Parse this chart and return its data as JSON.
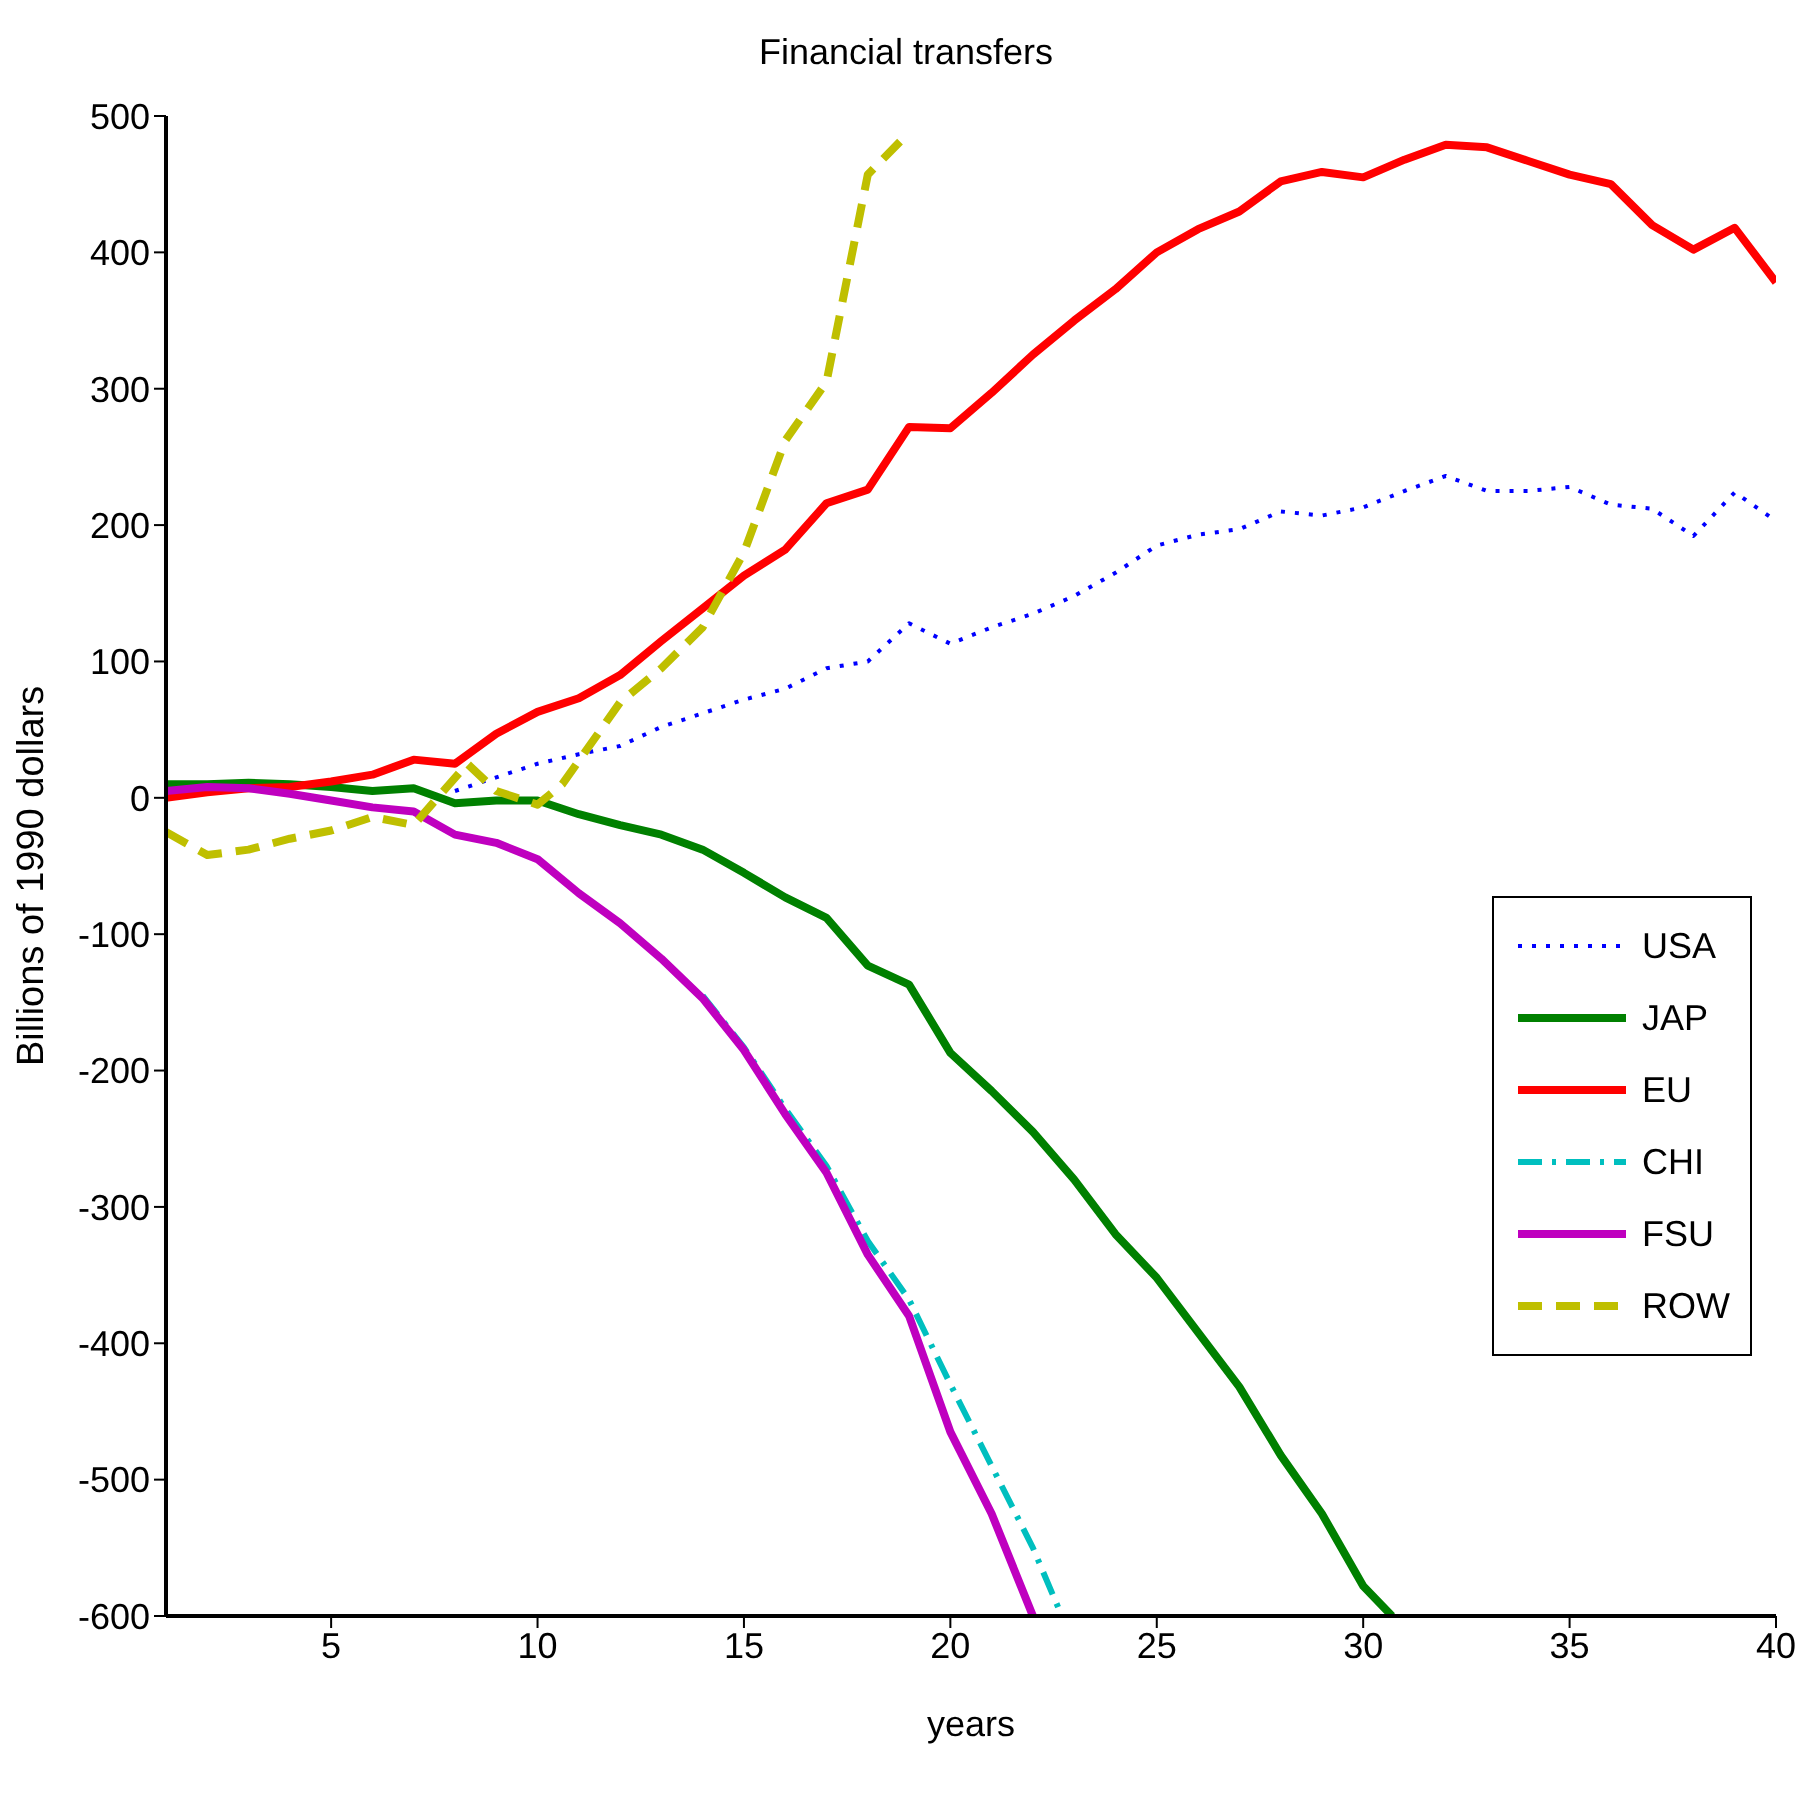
{
  "chart_data": {
    "type": "line",
    "title": "Financial transfers",
    "xlabel": "years",
    "ylabel": "Billions of 1990 dollars",
    "xlim": [
      1,
      40
    ],
    "xticks": [
      5,
      10,
      15,
      20,
      25,
      30,
      35,
      40
    ],
    "ylim": [
      -600,
      500
    ],
    "yticks": [
      -600,
      -500,
      -400,
      -300,
      -200,
      -100,
      0,
      100,
      200,
      300,
      400,
      500
    ],
    "grid": false,
    "legend": "right",
    "marker": "none",
    "series": [
      {
        "name": "USA",
        "color": "#0000ff",
        "line_style": "dotted",
        "x": [
          8,
          9,
          10,
          11,
          12,
          13,
          14,
          15,
          16,
          17,
          18,
          19,
          20,
          21,
          22,
          23,
          24,
          25,
          26,
          27,
          28,
          29,
          30,
          31,
          32,
          33,
          34,
          35,
          36,
          37,
          38,
          39,
          40
        ],
        "values": [
          5,
          15,
          25,
          32,
          38,
          52,
          62,
          72,
          80,
          95,
          100,
          128,
          113,
          125,
          135,
          148,
          165,
          185,
          193,
          197,
          210,
          207,
          213,
          225,
          236,
          225,
          225,
          228,
          215,
          212,
          192,
          224,
          203
        ]
      },
      {
        "name": "JAP",
        "color": "#008000",
        "line_style": "solid",
        "x": [
          1,
          2,
          3,
          4,
          5,
          6,
          7,
          8,
          9,
          10,
          11,
          12,
          13,
          14,
          15,
          16,
          17,
          18,
          19,
          20,
          21,
          22,
          23,
          24,
          25,
          26,
          27,
          28,
          29,
          30,
          30.7
        ],
        "values": [
          10,
          10,
          11,
          10,
          8,
          5,
          7,
          -4,
          -2,
          -2,
          -12,
          -20,
          -27,
          -38,
          -55,
          -73,
          -88,
          -123,
          -137,
          -187,
          -215,
          -245,
          -280,
          -320,
          -352,
          -392,
          -432,
          -482,
          -525,
          -578,
          -600
        ]
      },
      {
        "name": "EU",
        "color": "#ff0000",
        "line_style": "solid",
        "x": [
          1,
          2,
          3,
          4,
          5,
          6,
          7,
          8,
          9,
          10,
          11,
          12,
          13,
          14,
          15,
          16,
          17,
          18,
          19,
          20,
          21,
          22,
          23,
          24,
          25,
          26,
          27,
          28,
          29,
          30,
          31,
          32,
          33,
          34,
          35,
          36,
          37,
          38,
          39,
          40
        ],
        "values": [
          0,
          4,
          7,
          8,
          12,
          17,
          28,
          25,
          47,
          63,
          73,
          90,
          115,
          139,
          163,
          182,
          216,
          226,
          272,
          271,
          297,
          325,
          350,
          373,
          400,
          417,
          430,
          452,
          459,
          455,
          468,
          479,
          477,
          467,
          457,
          450,
          420,
          402,
          418,
          378
        ]
      },
      {
        "name": "CHI",
        "color": "#00bfbf",
        "line_style": "dashdot",
        "x": [
          14,
          15,
          16,
          17,
          18,
          19,
          20,
          21,
          22,
          22.7
        ],
        "values": [
          -145,
          -183,
          -228,
          -270,
          -325,
          -368,
          -430,
          -490,
          -550,
          -600
        ]
      },
      {
        "name": "FSU",
        "color": "#bf00bf",
        "line_style": "solid",
        "x": [
          1,
          2,
          3,
          4,
          5,
          6,
          7,
          8,
          9,
          10,
          11,
          12,
          13,
          14,
          15,
          16,
          17,
          18,
          19,
          20,
          21,
          22
        ],
        "values": [
          5,
          8,
          7,
          3,
          -2,
          -7,
          -10,
          -27,
          -33,
          -45,
          -70,
          -92,
          -118,
          -147,
          -185,
          -232,
          -275,
          -335,
          -380,
          -465,
          -525,
          -600
        ]
      },
      {
        "name": "ROW",
        "color": "#bfbf00",
        "line_style": "dashed",
        "x": [
          1,
          2,
          3,
          4,
          5,
          6,
          7,
          8.3,
          9,
          10,
          10.6,
          12,
          13,
          14,
          15,
          16,
          17,
          18,
          19
        ],
        "values": [
          -25,
          -42,
          -38,
          -30,
          -24,
          -14,
          -20,
          25,
          5,
          -5,
          10,
          70,
          95,
          125,
          180,
          262,
          305,
          457,
          488
        ]
      }
    ]
  }
}
